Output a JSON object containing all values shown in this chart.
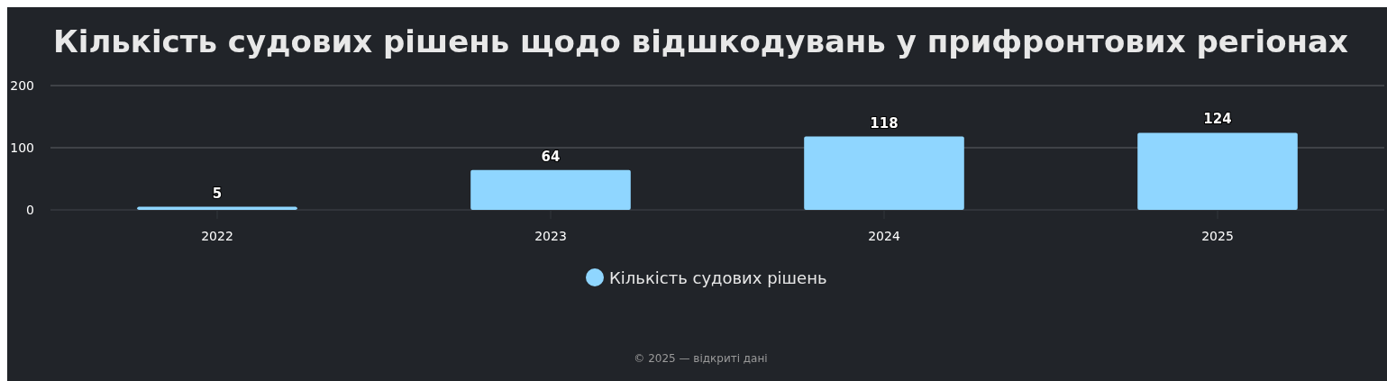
{
  "chart_data": {
    "type": "bar",
    "title": "Кількість судових рішень щодо відшкодувань у прифронтових регіонах",
    "categories": [
      "2022",
      "2023",
      "2024",
      "2025"
    ],
    "series": [
      {
        "name": "Кількість судових рішень",
        "color": "#8fd6ff",
        "values": [
          5,
          64,
          118,
          124
        ]
      }
    ],
    "ylim": [
      0,
      200
    ],
    "yticks": [
      0,
      100,
      200
    ],
    "grid": "y",
    "legend": "bottom",
    "data_labels": true,
    "annotations": [
      "© 2025 — відкриті дані"
    ]
  }
}
